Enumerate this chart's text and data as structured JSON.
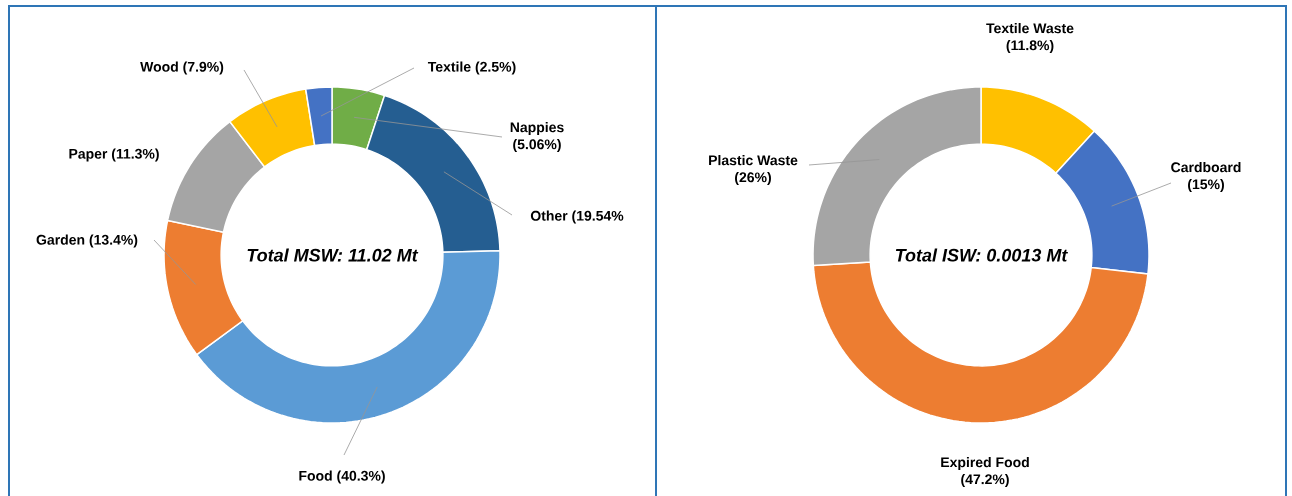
{
  "chart_data": [
    {
      "type": "donut",
      "categories": [
        "Nappies",
        "Other",
        "Food",
        "Garden",
        "Paper",
        "Wood",
        "Textile"
      ],
      "values": [
        5.06,
        19.54,
        40.3,
        13.4,
        11.3,
        7.9,
        2.5
      ],
      "colors": [
        "#70ad47",
        "#255e91",
        "#5b9bd5",
        "#ed7d31",
        "#a5a5a5",
        "#ffc000",
        "#4472c4"
      ],
      "value_labels": [
        "(5.06%)",
        "(19.54%",
        "(40.3%)",
        "(13.4%)",
        "(11.3%)",
        "(7.9%)",
        "(2.5%)"
      ],
      "annotations": [
        "Total MSW: 11.02 Mt"
      ]
    },
    {
      "type": "donut",
      "categories": [
        "Textile Waste",
        "Cardboard",
        "Expired Food",
        "Plastic Waste"
      ],
      "values": [
        11.8,
        15,
        47.2,
        26
      ],
      "colors": [
        "#ffc000",
        "#4472c4",
        "#ed7d31",
        "#a5a5a5"
      ],
      "value_labels": [
        "(11.8%)",
        "(15%)",
        "(47.2%)",
        "(26%)"
      ],
      "annotations": [
        "Total ISW:  0.0013 Mt"
      ]
    }
  ]
}
